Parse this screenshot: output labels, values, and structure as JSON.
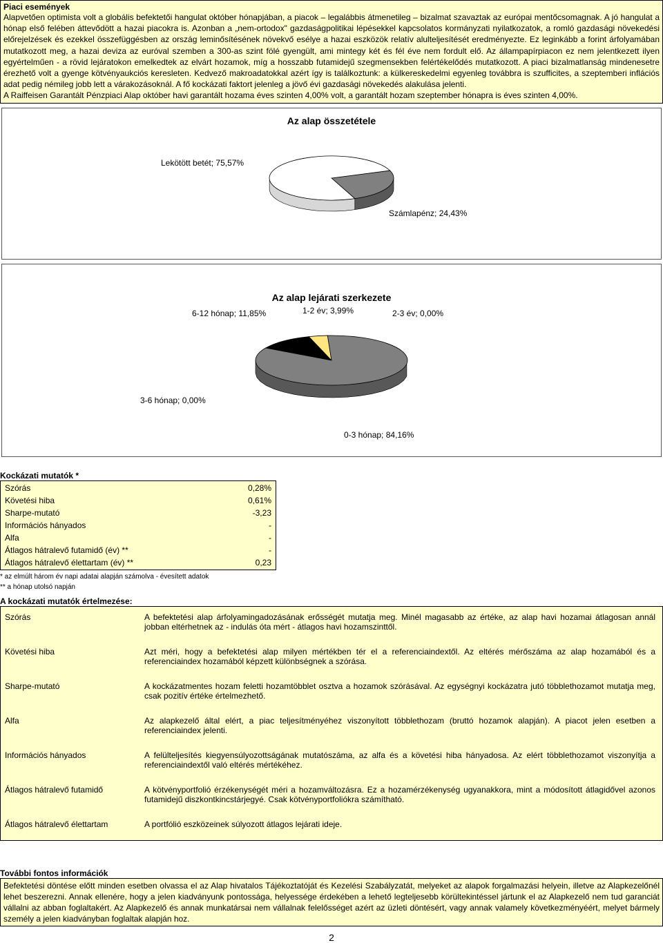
{
  "market": {
    "title": "Piaci események",
    "body": "Alapvetően optimista volt a globális befektetői hangulat október hónapjában, a piacok – legalábbis átmenetileg – bizalmat szavaztak az európai mentőcsomagnak. A jó hangulat a hónap első felében áttevődött a hazai piacokra is. Azonban a „nem-ortodox\" gazdaságpolitikai lépésekkel kapcsolatos kormányzati nyilatkozatok, a romló gazdasági növekedési előrejelzések és ezekkel összefüggésben az ország leminősítésének növekvő esélye a hazai eszközök relatív alulteljesítését eredményezte. Ez leginkább a forint árfolyamában mutatkozott meg, a hazai deviza az euróval szemben a 300-as szint fölé gyengült, ami mintegy két és fél éve nem fordult elő. Az állampapírpiacon ez nem jelentkezett ilyen egyértelműen - a rövid lejáratokon emelkedtek az elvárt hozamok, míg a hosszabb futamidejű szegmensekben felértékelődés mutatkozott. A piaci bizalmatlanság mindenesetre érezhető volt a gyenge kötvényaukciós keresleten. Kedvező makroadatokkal azért így is találkoztunk: a külkereskedelmi egyenleg továbbra is szufficites, a szeptemberi inflációs adat pedig némileg jobb lett a várakozásoknál. A fő kockázati faktort jelenleg a jövő évi gazdasági növekedés alakulása jelenti.",
    "body2": "A Raiffeisen Garantált Pénzpiaci Alap október havi garantált hozama éves szinten 4,00% volt, a garantált hozam szeptember hónapra is éves szinten 4,00%."
  },
  "chart1": {
    "title": "Az alap összetétele",
    "type": "pie",
    "slices": [
      {
        "label": "Lekötött betét; 75,57%",
        "value": 75.57,
        "color": "#ffffff"
      },
      {
        "label": "Számlapénz; 24,43%",
        "value": 24.43,
        "color": "#808080"
      }
    ],
    "stroke": "#000000",
    "side_stroke": "#555555"
  },
  "chart2": {
    "title": "Az alap lejárati szerkezete",
    "type": "pie",
    "slices": [
      {
        "label": "0-3 hónap; 84,16%",
        "value": 84.16,
        "color": "#808080"
      },
      {
        "label": "3-6 hónap; 0,00%",
        "value": 0.0,
        "color": "#cccccc"
      },
      {
        "label": "6-12 hónap; 11,85%",
        "value": 11.85,
        "color": "#000000"
      },
      {
        "label": "1-2 év; 3,99%",
        "value": 3.99,
        "color": "#ffe680"
      },
      {
        "label": "2-3 év; 0,00%",
        "value": 0.0,
        "color": "#ffffff"
      }
    ],
    "stroke": "#000000"
  },
  "risk": {
    "title": "Kockázati mutatók *",
    "rows": [
      {
        "name": "Szórás",
        "value": "0,28%"
      },
      {
        "name": "Követési hiba",
        "value": "0,61%"
      },
      {
        "name": "Sharpe-mutató",
        "value": "-3,23"
      },
      {
        "name": "Információs hányados",
        "value": "-"
      },
      {
        "name": "Alfa",
        "value": "-"
      },
      {
        "name": "Átlagos hátralevő futamidő (év) **",
        "value": "-"
      },
      {
        "name": "Átlagos hátralevő élettartam (év) **",
        "value": "0,23"
      }
    ],
    "foot1": "* az elmúlt három év napi adatai alapján számolva - évesített adatok",
    "foot2": "** a hónap utolsó napján"
  },
  "defs": {
    "title": "A kockázati mutatók értelmezése:",
    "items": [
      {
        "term": "Szórás",
        "text": "A befektetési alap árfolyamingadozásának erősségét mutatja meg. Minél magasabb az értéke, az alap havi hozamai átlagosan annál jobban eltérhetnek az - indulás óta mért - átlagos havi hozamszinttől."
      },
      {
        "term": "Követési hiba",
        "text": "Azt méri, hogy a befektetési alap milyen mértékben tér el a referenciaindextől. Az eltérés mérőszáma az alap hozamából és a referenciaindex hozamából képzett különbségnek a szórása."
      },
      {
        "term": "Sharpe-mutató",
        "text": "A kockázatmentes hozam feletti hozamtöbblet osztva a hozamok szórásával. Az egységnyi kockázatra jutó többlethozamot mutatja meg, csak pozitív értéke értelmezhető."
      },
      {
        "term": "Alfa",
        "text": "Az alapkezelő által elért, a piac teljesítményéhez viszonyított többlethozam (bruttó hozamok alapján). A piacot jelen esetben a referenciaindex jelenti."
      },
      {
        "term": "Információs hányados",
        "text": "A felülteljesítés kiegyensúlyozottságának mutatószáma, az alfa és a követési hiba hányadosa. Az elért többlethozamot viszonyítja a referenciaindextől való eltérés mértékéhez."
      },
      {
        "term": "Átlagos hátralevő futamidő",
        "text": "A kötvényportfolió érzékenységét méri a hozamváltozásra. Ez a hozamérzékenység ugyanakkora, mint a módosított átlagidővel azonos futamidejű diszkontkincstárjegyé. Csak kötvényportfoliókra számítható."
      },
      {
        "term": "Átlagos hátralevő élettartam",
        "text": "A portfólió eszközeinek súlyozott átlagos lejárati ideje."
      }
    ]
  },
  "further": {
    "title": "További fontos információk",
    "text": "Befektetési döntése előtt minden esetben olvassa el az Alap hivatalos Tájékoztatóját és Kezelési Szabályzatát, melyeket az alapok forgalmazási helyein, illetve az Alapkezelőnél lehet beszerezni. Annak ellenére, hogy a jelen kiadványunk pontossága, helyessége érdekében a lehető legteljesebb körültekintéssel jártunk el az Alapkezelő nem tud garanciát vállalni az abban foglaltakért. Az Alapkezelő és annak munkatársai nem vállalnak felelősséget azért az üzleti döntésért, vagy annak valamely következményéért, melyet bármely személy a jelen kiadványban foglaltak alapján hoz."
  },
  "page": "2"
}
